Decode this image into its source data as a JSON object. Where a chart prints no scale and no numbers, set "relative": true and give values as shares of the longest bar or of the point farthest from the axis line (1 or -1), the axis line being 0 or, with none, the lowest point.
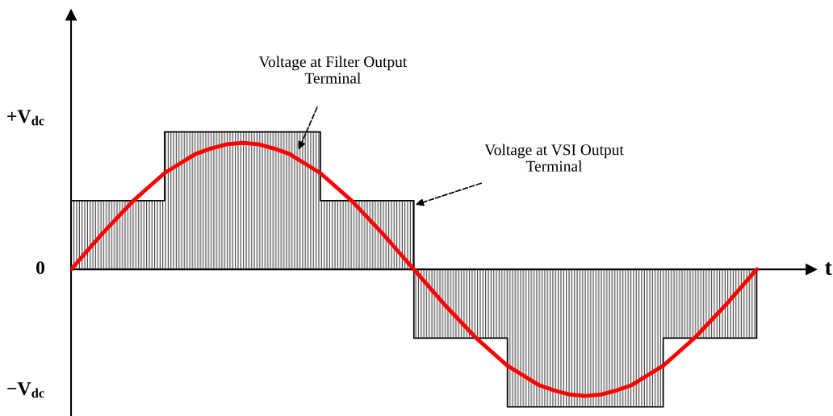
{
  "chart_data": {
    "type": "line",
    "xlabel": "t",
    "categories": [
      null,
      null,
      null,
      null,
      null,
      null,
      null,
      null,
      null,
      null,
      null,
      null,
      null,
      null,
      null,
      null,
      null,
      null,
      null,
      null,
      null,
      null,
      null,
      null,
      null,
      null,
      null,
      null,
      null,
      null,
      null,
      null,
      null,
      null,
      null,
      null,
      null,
      null,
      null,
      null,
      null,
      null,
      null,
      null,
      null
    ],
    "relative": true,
    "series": [
      {
        "type": "step",
        "color": "#000000",
        "values": [
          0.5,
          0.5,
          0.5,
          0.5,
          0.5,
          0.5,
          1,
          1,
          1,
          1,
          1,
          1,
          1,
          1,
          1,
          1,
          0.5,
          0.5,
          0.5,
          0.5,
          0.5,
          0.5,
          -0.5,
          -0.5,
          -0.5,
          -0.5,
          -0.5,
          -0.5,
          -1,
          -1,
          -1,
          -1,
          -1,
          -1,
          -1,
          -1,
          -1,
          -1,
          -0.5,
          -0.5,
          -0.5,
          -0.5,
          -0.5,
          -0.5,
          0
        ]
      },
      {
        "color": "#ff0000",
        "values": [
          0,
          0.13,
          0.26,
          0.38,
          0.5,
          0.6,
          0.7,
          0.77,
          0.84,
          0.88,
          0.91,
          0.92,
          0.91,
          0.88,
          0.84,
          0.77,
          0.7,
          0.6,
          0.5,
          0.38,
          0.26,
          0.13,
          0,
          -0.13,
          -0.26,
          -0.38,
          -0.5,
          -0.6,
          -0.7,
          -0.77,
          -0.84,
          -0.88,
          -0.91,
          -0.92,
          -0.91,
          -0.88,
          -0.84,
          -0.77,
          -0.7,
          -0.6,
          -0.5,
          -0.38,
          -0.26,
          -0.13,
          0
        ]
      }
    ],
    "annotations": [
      "+V$_{dc}$",
      "0",
      "−V$_{dc}$",
      "Voltage at Filter Output\nTerminal",
      "Voltage at VSI Output\nTerminal"
    ]
  }
}
